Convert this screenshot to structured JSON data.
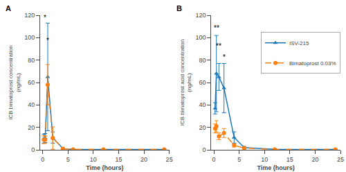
{
  "chart_data": [
    {
      "type": "line",
      "title": "A",
      "x_label": "Time (hours)",
      "y_label": "ICB bimatoprost concentration\n(ng/mL)",
      "x": [
        0.25,
        0.5,
        1.0,
        2.0,
        4.0,
        6.0,
        12.0,
        24.0
      ],
      "xlim": [
        -0.5,
        25
      ],
      "xticks": [
        0,
        5,
        10,
        15,
        20,
        25
      ],
      "ylim": [
        0,
        120
      ],
      "yticks": [
        0,
        20,
        40,
        60,
        80,
        100,
        120
      ],
      "grid": false,
      "series": [
        {
          "name": "ISV-215",
          "color": "#1f77b4",
          "marker": "triangle",
          "line_style": "solid",
          "values": [
            10.0,
            10.5,
            65.0,
            11.0,
            1.0,
            0.3,
            0.3,
            0.3
          ],
          "errors": [
            4.0,
            4.0,
            48.0,
            5.0,
            0.8,
            0.2,
            0.2,
            0.2
          ]
        },
        {
          "name": "Bimatoprost 0.03%",
          "color": "#ff7f0e",
          "marker": "circle",
          "line_style": "dashed",
          "values": [
            9.0,
            9.0,
            58.0,
            10.5,
            1.0,
            0.3,
            0.3,
            0.3
          ],
          "errors": [
            3.5,
            3.0,
            18.0,
            10.0,
            0.8,
            0.2,
            0.2,
            0.2
          ]
        }
      ],
      "annotations": [
        {
          "x": 0.5,
          "y": 113,
          "text": "*"
        },
        {
          "x": 1.0,
          "y": 93,
          "text": "*"
        }
      ]
    },
    {
      "type": "line",
      "title": "B",
      "x_label": "Time (hours)",
      "y_label": "ICB bimatoprost acid concentration\n(ng/mL)",
      "x": [
        0.25,
        0.5,
        1.0,
        2.0,
        4.0,
        6.0,
        12.0,
        24.0
      ],
      "xlim": [
        -0.5,
        25
      ],
      "xticks": [
        0,
        5,
        10,
        15,
        20,
        25
      ],
      "ylim": [
        0,
        120
      ],
      "yticks": [
        0,
        20,
        40,
        60,
        80,
        100,
        120
      ],
      "grid": false,
      "legend": "right",
      "series": [
        {
          "name": "ISV-215",
          "color": "#1f77b4",
          "marker": "triangle",
          "line_style": "solid",
          "values": [
            37.0,
            68.0,
            65.0,
            55.0,
            11.0,
            2.0,
            0.5,
            0.3
          ],
          "errors": [
            5.0,
            34.0,
            12.0,
            22.0,
            5.0,
            1.0,
            0.3,
            0.2
          ]
        },
        {
          "name": "Bimatoprost 0.03%",
          "color": "#ff7f0e",
          "marker": "circle",
          "line_style": "dashed",
          "values": [
            19.0,
            21.0,
            12.0,
            15.0,
            4.0,
            1.5,
            0.3,
            0.3
          ],
          "errors": [
            4.0,
            5.0,
            3.0,
            4.0,
            1.5,
            0.8,
            0.2,
            0.2
          ]
        }
      ],
      "annotations": [
        {
          "x": 0.5,
          "y": 104,
          "text": "**"
        },
        {
          "x": 1.0,
          "y": 88,
          "text": "**"
        },
        {
          "x": 2.0,
          "y": 78,
          "text": "*"
        }
      ]
    }
  ]
}
